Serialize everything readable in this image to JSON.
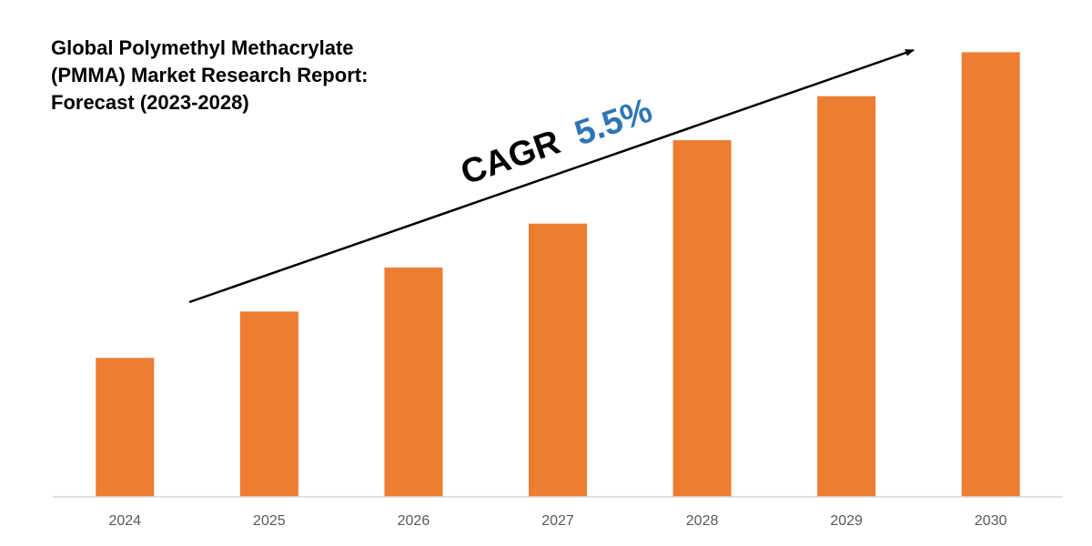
{
  "chart_data": {
    "type": "bar",
    "title_lines": [
      "Global Polymethyl Methacrylate",
      "(PMMA) Market Research Report:",
      "Forecast (2023-2028)"
    ],
    "categories": [
      "2024",
      "2025",
      "2026",
      "2027",
      "2028",
      "2029",
      "2030"
    ],
    "values": [
      30,
      40,
      49.5,
      59,
      77,
      86.5,
      96
    ],
    "ylim": [
      0,
      100
    ],
    "grid": false,
    "legend": "none",
    "bar_color": "#ED7D31",
    "axis_color": "#D9D9D9",
    "annotation": {
      "prefix": "CAGR",
      "value": "5.5%",
      "prefix_color": "#000000",
      "value_color": "#2E75B6"
    }
  }
}
